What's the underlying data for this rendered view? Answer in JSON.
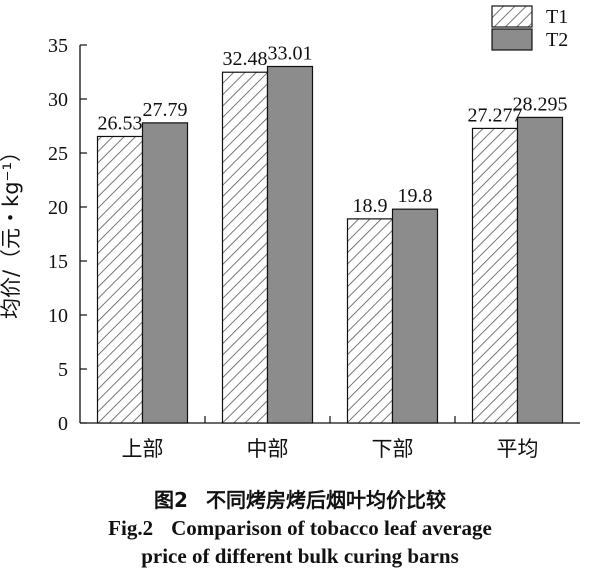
{
  "chart_data": {
    "type": "bar",
    "categories": [
      "上部",
      "中部",
      "下部",
      "平均"
    ],
    "series": [
      {
        "name": "T1",
        "values": [
          26.53,
          32.48,
          18.9,
          27.277
        ],
        "labels": [
          "26.53",
          "32.48",
          "18.9",
          "27.277"
        ],
        "pattern": "diagonal-hatch",
        "color": "#ffffff"
      },
      {
        "name": "T2",
        "values": [
          27.79,
          33.01,
          19.8,
          28.295
        ],
        "labels": [
          "27.79",
          "33.01",
          "19.8",
          "28.295"
        ],
        "pattern": "solid",
        "color": "#8c8c8c"
      }
    ],
    "ylabel": "均价/（元・kg⁻¹）",
    "xlabel": "",
    "ylim": [
      0,
      35
    ],
    "yticks": [
      0,
      5,
      10,
      15,
      20,
      25,
      30,
      35
    ],
    "grid": false,
    "legend": "top-right"
  },
  "caption": {
    "cn_number": "图2",
    "cn_title": "不同烤房烤后烟叶均价比较",
    "en_number": "Fig.2",
    "en_title_line1": "Comparison of tobacco leaf average",
    "en_title_line2": "price of different bulk curing barns"
  },
  "colors": {
    "axis": "#111111",
    "t2_fill": "#8c8c8c",
    "hatch": "#555555"
  }
}
